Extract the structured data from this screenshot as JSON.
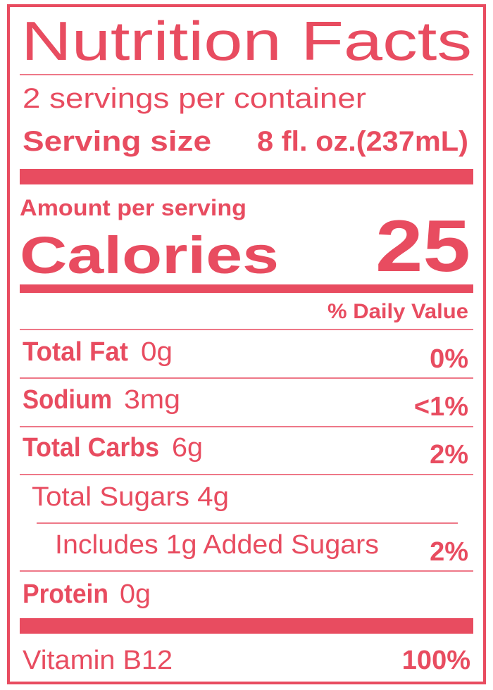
{
  "title": "Nutrition Facts",
  "servings": "2 servings per container",
  "serving_size": {
    "label": "Serving size",
    "value": "8 fl. oz.(237mL)"
  },
  "amount_per_serving": "Amount per serving",
  "calories": {
    "label": "Calories",
    "value": "25"
  },
  "daily_value_header": "% Daily Value",
  "rows": [
    {
      "name": "Total Fat",
      "amount": "0g",
      "dv": "0%"
    },
    {
      "name": "Sodium",
      "amount": "3mg",
      "dv": "<1%"
    },
    {
      "name": "Total Carbs",
      "amount": "6g",
      "dv": "2%"
    },
    {
      "name": "Total Sugars 4g"
    },
    {
      "name": "Includes 1g Added Sugars",
      "dv": "2%"
    },
    {
      "name": "Protein",
      "amount": "0g"
    }
  ],
  "vitamin": {
    "name": "Vitamin B12",
    "dv": "100%"
  }
}
